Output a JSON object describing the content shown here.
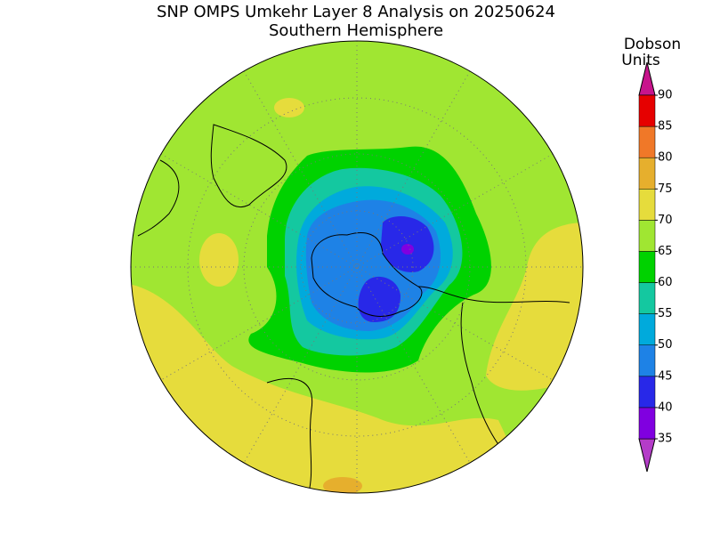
{
  "title": "SNP OMPS Umkehr Layer 8 Analysis on 20250624",
  "subtitle": "Southern Hemisphere",
  "colorbar": {
    "label": [
      "Dobson",
      "Units"
    ],
    "ticks": [
      35,
      40,
      45,
      50,
      55,
      60,
      65,
      70,
      75,
      80,
      85,
      90
    ],
    "colors": [
      "#b43cc8",
      "#8000e0",
      "#2828e8",
      "#1e82e6",
      "#00aadc",
      "#14c8a0",
      "#00d200",
      "#a0e632",
      "#e6dc3c",
      "#e6af2d",
      "#f07828",
      "#e60000",
      "#c8148c"
    ]
  }
}
